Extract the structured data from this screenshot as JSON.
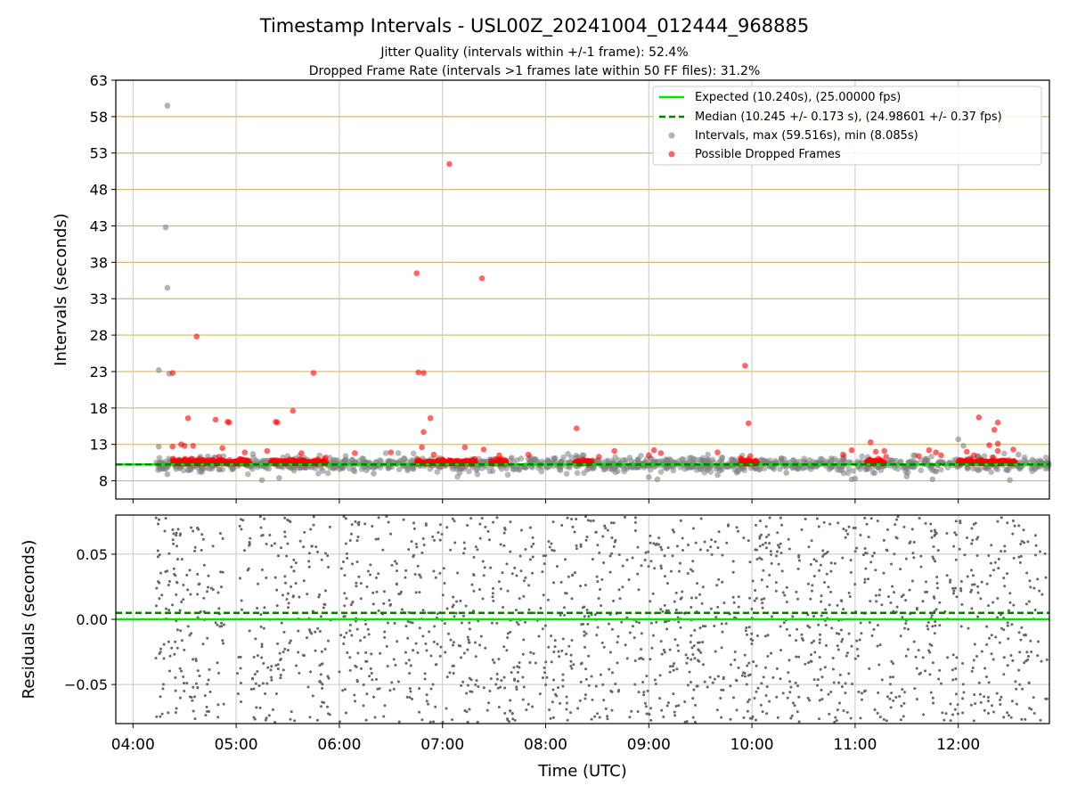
{
  "title": "Timestamp Intervals - USL00Z_20241004_012444_968885",
  "subtitle_1": "Jitter Quality (intervals within +/-1 frame): 52.4%",
  "subtitle_2": "Dropped Frame Rate (intervals >1 frames late within 50 FF files): 31.2%",
  "colors": {
    "expected": "#00e600",
    "median": "#008000",
    "intervals": "#808080",
    "dropped": "#ff0000",
    "hgrid": "#d4b96a",
    "vgrid": "#c8c8c8"
  },
  "legend": {
    "expected": "Expected (10.240s), (25.00000 fps)",
    "median": "Median (10.245 +/- 0.173 s), (24.98601 +/- 0.37 fps)",
    "intervals": "Intervals, max (59.516s), min (8.085s)",
    "dropped": "Possible Dropped Frames"
  },
  "chart_data": [
    {
      "type": "scatter",
      "ylabel": "Intervals (seconds)",
      "ylim": [
        5.5,
        63
      ],
      "yticks": [
        "8",
        "13",
        "18",
        "23",
        "28",
        "33",
        "38",
        "43",
        "48",
        "53",
        "58",
        "63"
      ],
      "ytick_values": [
        8,
        13,
        18,
        23,
        28,
        33,
        38,
        43,
        48,
        53,
        58,
        63
      ],
      "xlim": [
        "03:50",
        "12:53"
      ],
      "grid": "horizontal gold lines, vertical grey lines",
      "legend_position": "top-right",
      "expected_line": 10.24,
      "median_line": 10.245,
      "series": [
        {
          "name": "Intervals, max (59.516s), min (8.085s)",
          "points": [
            [
              "04:15",
              23.2
            ],
            [
              "04:15",
              12.7
            ],
            [
              "04:19",
              42.8
            ],
            [
              "04:20",
              34.5
            ],
            [
              "04:20",
              59.5
            ],
            [
              "04:21",
              22.7
            ],
            [
              "04:20",
              8.9
            ],
            [
              "04:40",
              9.4
            ],
            [
              "05:15",
              8.1
            ],
            [
              "05:25",
              8.4
            ],
            [
              "06:20",
              9.0
            ],
            [
              "07:10",
              9.1
            ],
            [
              "08:05",
              11.0
            ],
            [
              "09:00",
              8.5
            ],
            [
              "09:05",
              8.2
            ],
            [
              "09:40",
              8.8
            ],
            [
              "10:20",
              9.1
            ],
            [
              "10:58",
              8.2
            ],
            [
              "11:00",
              8.3
            ],
            [
              "11:30",
              8.6
            ],
            [
              "11:35",
              11.5
            ],
            [
              "11:45",
              8.2
            ],
            [
              "12:00",
              13.7
            ],
            [
              "12:03",
              12.8
            ],
            [
              "12:30",
              8.1
            ],
            [
              "12:35",
              11.6
            ]
          ]
        },
        {
          "name": "Possible Dropped Frames",
          "points": [
            [
              "04:23",
              22.8
            ],
            [
              "04:23",
              12.7
            ],
            [
              "04:28",
              13.0
            ],
            [
              "04:30",
              12.8
            ],
            [
              "04:32",
              16.6
            ],
            [
              "04:35",
              12.8
            ],
            [
              "04:37",
              27.8
            ],
            [
              "04:48",
              16.4
            ],
            [
              "04:50",
              11.3
            ],
            [
              "04:52",
              12.5
            ],
            [
              "04:55",
              16.1
            ],
            [
              "04:56",
              16.0
            ],
            [
              "05:05",
              11.9
            ],
            [
              "05:18",
              12.1
            ],
            [
              "05:23",
              16.1
            ],
            [
              "05:24",
              16.0
            ],
            [
              "05:33",
              17.6
            ],
            [
              "05:38",
              11.8
            ],
            [
              "05:45",
              22.8
            ],
            [
              "05:52",
              11.2
            ],
            [
              "06:09",
              11.8
            ],
            [
              "06:30",
              11.9
            ],
            [
              "06:45",
              36.5
            ],
            [
              "06:46",
              22.9
            ],
            [
              "06:48",
              12.6
            ],
            [
              "06:49",
              14.7
            ],
            [
              "06:49",
              22.8
            ],
            [
              "06:53",
              16.6
            ],
            [
              "06:55",
              11.6
            ],
            [
              "07:04",
              51.5
            ],
            [
              "07:13",
              12.6
            ],
            [
              "07:23",
              35.8
            ],
            [
              "07:24",
              12.3
            ],
            [
              "07:33",
              11.5
            ],
            [
              "07:50",
              11.6
            ],
            [
              "08:18",
              15.2
            ],
            [
              "08:31",
              11.3
            ],
            [
              "08:40",
              12.1
            ],
            [
              "09:00",
              11.5
            ],
            [
              "09:03",
              12.2
            ],
            [
              "09:07",
              11.8
            ],
            [
              "09:40",
              11.9
            ],
            [
              "09:56",
              23.8
            ],
            [
              "09:58",
              15.9
            ],
            [
              "09:59",
              11.4
            ],
            [
              "10:53",
              11.6
            ],
            [
              "10:58",
              12.2
            ],
            [
              "11:09",
              13.3
            ],
            [
              "11:12",
              12.0
            ],
            [
              "11:17",
              12.1
            ],
            [
              "11:18",
              11.3
            ],
            [
              "11:37",
              11.4
            ],
            [
              "11:43",
              12.2
            ],
            [
              "11:47",
              11.9
            ],
            [
              "11:50",
              11.5
            ],
            [
              "12:05",
              12.0
            ],
            [
              "12:09",
              11.5
            ],
            [
              "12:12",
              16.7
            ],
            [
              "12:18",
              12.9
            ],
            [
              "12:20",
              11.2
            ],
            [
              "12:21",
              15.0
            ],
            [
              "12:23",
              13.1
            ],
            [
              "12:23",
              12.1
            ],
            [
              "12:23",
              16.0
            ],
            [
              "12:32",
              12.3
            ]
          ]
        }
      ],
      "baseline_interval": 10.24,
      "dense_ranges": [
        [
          "04:13",
          "12:53"
        ]
      ],
      "dropped_clusters": [
        [
          "04:23",
          "04:53"
        ],
        [
          "04:53",
          "05:08"
        ],
        [
          "05:20",
          "05:53"
        ],
        [
          "06:45",
          "07:20"
        ],
        [
          "07:28",
          "07:37"
        ],
        [
          "08:17",
          "08:27"
        ],
        [
          "09:53",
          "10:03"
        ],
        [
          "11:07",
          "11:17"
        ],
        [
          "12:00",
          "12:33"
        ]
      ]
    },
    {
      "type": "scatter",
      "xlabel": "Time (UTC)",
      "ylabel": "Residuals (seconds)",
      "ylim": [
        -0.08,
        0.08
      ],
      "yticks": [
        "0.05",
        "0.00",
        "−0.05"
      ],
      "ytick_values": [
        0.05,
        0.0,
        -0.05
      ],
      "xticks": [
        "04:00",
        "05:00",
        "06:00",
        "07:00",
        "08:00",
        "09:00",
        "10:00",
        "11:00",
        "12:00"
      ],
      "xlim": [
        "03:50",
        "12:53"
      ],
      "expected_line": 0.0,
      "median_line": 0.005,
      "series": [
        {
          "name": "Residuals",
          "range_x": [
            "04:13",
            "12:53"
          ],
          "spread": 0.08,
          "gap_ranges": [
            [
              "04:53",
              "05:00"
            ],
            [
              "05:55",
              "06:00"
            ]
          ]
        }
      ]
    }
  ]
}
